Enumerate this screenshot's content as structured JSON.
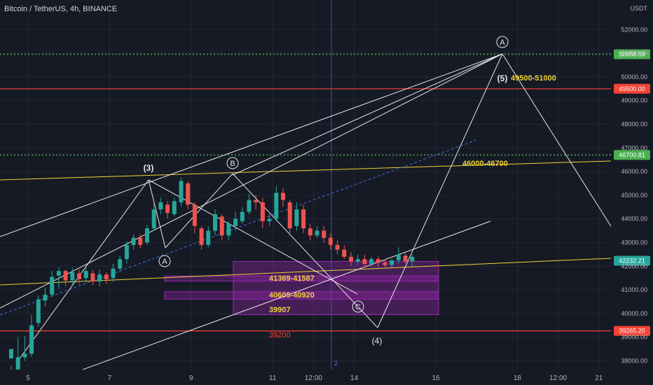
{
  "header": {
    "title": "Bitcoin / TetherUS, 4h, BINANCE",
    "currency": "USDT"
  },
  "colors": {
    "bg": "#161a25",
    "grid": "#232735",
    "bull": "#26a69a",
    "bear": "#ef5350",
    "yellow": "#f0d23a",
    "green": "#4caf50",
    "red": "#f44336",
    "purple": "#9c27b0",
    "blue": "#3f51b5",
    "white": "#e6e6e6"
  },
  "chart_data": {
    "type": "candlestick",
    "ylim": [
      37500,
      53000
    ],
    "y_ticks": [
      "52000.00",
      "51000.00",
      "50000.00",
      "49000.00",
      "48000.00",
      "47000.00",
      "46000.00",
      "45000.00",
      "44000.00",
      "43000.00",
      "42000.00",
      "41000.00",
      "40000.00",
      "39000.00",
      "38000.00"
    ],
    "x_ticks": [
      "5",
      "7",
      "9",
      "11",
      "12:00",
      "14",
      "16",
      "18",
      "12:00",
      "21"
    ],
    "x_ticks_pos": [
      0,
      12,
      24,
      36,
      42,
      48,
      60,
      72,
      78,
      84
    ],
    "candles": [
      [
        38100,
        38500,
        37800,
        37600
      ],
      [
        37600,
        38150,
        39000,
        37500
      ],
      [
        38150,
        38300,
        39050,
        38000
      ],
      [
        38300,
        39500,
        39950,
        38150
      ],
      [
        39600,
        40600,
        40750,
        39450
      ],
      [
        40550,
        40800,
        41100,
        40300
      ],
      [
        40800,
        41550,
        41800,
        40700
      ],
      [
        41600,
        41800,
        41950,
        41050
      ],
      [
        41800,
        41400,
        41850,
        41150
      ],
      [
        41400,
        41750,
        41950,
        41150
      ],
      [
        41700,
        41450,
        41850,
        41250
      ],
      [
        41500,
        41800,
        41950,
        41300
      ],
      [
        41700,
        41350,
        41850,
        41200
      ],
      [
        41350,
        41650,
        41850,
        41150
      ],
      [
        41650,
        41450,
        41750,
        41250
      ],
      [
        41500,
        41900,
        42100,
        41350
      ],
      [
        41900,
        42300,
        42450,
        41750
      ],
      [
        42300,
        42900,
        43050,
        42100
      ],
      [
        42900,
        43200,
        43350,
        42700
      ],
      [
        43200,
        42900,
        43350,
        42750
      ],
      [
        43000,
        43600,
        43750,
        42900
      ],
      [
        43600,
        44400,
        44700,
        43500
      ],
      [
        44400,
        44700,
        44900,
        44200
      ],
      [
        44600,
        44250,
        44750,
        44000
      ],
      [
        44200,
        44750,
        44900,
        44100
      ],
      [
        44700,
        45600,
        45750,
        44500
      ],
      [
        45500,
        44600,
        45600,
        44400
      ],
      [
        44600,
        43700,
        44700,
        43400
      ],
      [
        43600,
        42900,
        43700,
        42700
      ],
      [
        42900,
        43500,
        43700,
        42800
      ],
      [
        43500,
        44200,
        44400,
        43300
      ],
      [
        44100,
        43300,
        44200,
        43100
      ],
      [
        43300,
        43800,
        43900,
        43100
      ],
      [
        43700,
        44000,
        44300,
        43500
      ],
      [
        43900,
        44300,
        44500,
        43800
      ],
      [
        44300,
        44800,
        45050,
        44200
      ],
      [
        44800,
        44700,
        45000,
        44400
      ],
      [
        44700,
        43900,
        44900,
        43600
      ],
      [
        43900,
        44000,
        44200,
        43700
      ],
      [
        44000,
        45100,
        45400,
        43900
      ],
      [
        45100,
        44800,
        45300,
        44500
      ],
      [
        44700,
        43600,
        44800,
        43400
      ],
      [
        43700,
        44400,
        44700,
        43500
      ],
      [
        44400,
        43600,
        44600,
        43400
      ],
      [
        43600,
        43300,
        43800,
        43100
      ],
      [
        43300,
        43500,
        43700,
        43200
      ],
      [
        43500,
        43200,
        43700,
        43000
      ],
      [
        43200,
        42900,
        43400,
        42700
      ],
      [
        42900,
        42700,
        43100,
        42500
      ],
      [
        42700,
        42400,
        42900,
        42300
      ],
      [
        42400,
        42200,
        42600,
        42000
      ],
      [
        42200,
        42300,
        42500,
        42050
      ],
      [
        42300,
        42100,
        42500,
        41950
      ],
      [
        42100,
        42300,
        42400,
        42000
      ],
      [
        42300,
        42150,
        42400,
        41950
      ],
      [
        42150,
        42050,
        42300,
        41950
      ],
      [
        42050,
        42250,
        42300,
        41950
      ],
      [
        42250,
        42500,
        42800,
        42100
      ],
      [
        42450,
        42200,
        42600,
        42100
      ],
      [
        42200,
        42400,
        42500,
        42000
      ]
    ],
    "label_strings": {
      "wave3": "(3)",
      "wave4": "(4)",
      "wave5": "(5)",
      "circA1": "A",
      "circB": "B",
      "circC": "C",
      "circA2": "A",
      "tgt_top": "49500-51000",
      "tgt_mid": "46000-46700",
      "z1": "41369-41587",
      "z2": "40609-40920",
      "z3": "39907",
      "z4": "39200",
      "counter": "2"
    },
    "price_labels": [
      "50958.59",
      "49500.00",
      "46700.81",
      "42232.21",
      "39265.20"
    ],
    "level_values": {
      "g1": 50958.59,
      "r1": 49500,
      "g2": 46700.81,
      "cur": 42232.21,
      "r2": 39265.2
    }
  }
}
